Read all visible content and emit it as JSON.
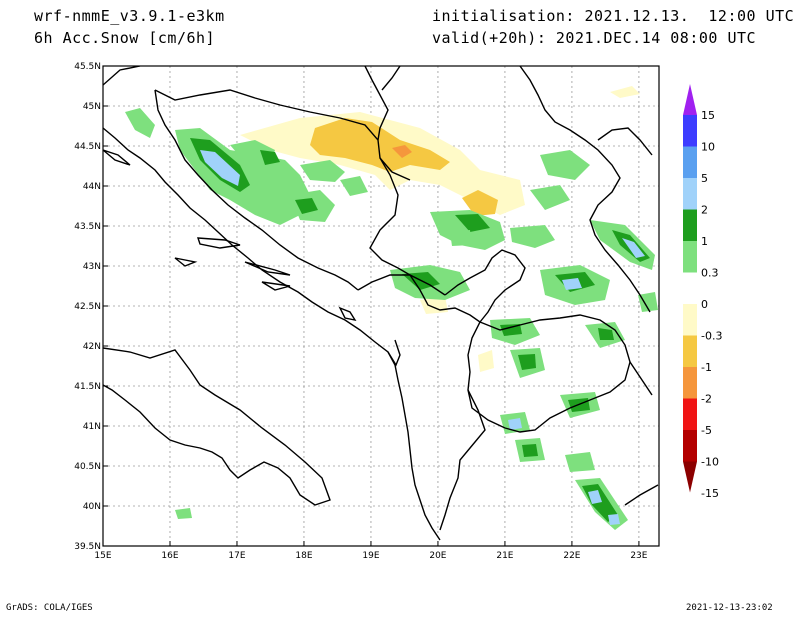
{
  "header": {
    "model": "wrf-nmmE_v3.9.1-e3km",
    "field": "6h Acc.Snow [cm/6h]",
    "init": "initialisation: 2021.12.13.  12:00 UTC",
    "valid": "valid(+20h): 2021.DEC.14 08:00 UTC"
  },
  "footer": {
    "left": "GrADS: COLA/IGES",
    "right": "2021-12-13-23:02"
  },
  "map": {
    "lon_range": [
      15,
      23.3
    ],
    "lat_range": [
      39.5,
      45.5
    ],
    "lon_labels": [
      "15E",
      "16E",
      "17E",
      "18E",
      "19E",
      "20E",
      "21E",
      "22E",
      "23E"
    ],
    "lat_labels": [
      "45.5N",
      "45N",
      "44.5N",
      "44N",
      "43.5N",
      "43N",
      "42.5N",
      "42N",
      "41.5N",
      "41N",
      "40.5N",
      "40N",
      "39.5N"
    ]
  },
  "colorbar": {
    "labels": [
      "15",
      "10",
      "5",
      "2",
      "1",
      "0.3",
      "0",
      "-0.3",
      "-1",
      "-2",
      "-5",
      "-10",
      "-15"
    ],
    "colors": [
      "#a020f0",
      "#3c3cff",
      "#5aa0f0",
      "#a0d2fa",
      "#1e9e1e",
      "#7ee07e",
      "#ffffff",
      "#fffac8",
      "#f5c842",
      "#f5963c",
      "#f01414",
      "#b40000",
      "#8c0000"
    ]
  }
}
